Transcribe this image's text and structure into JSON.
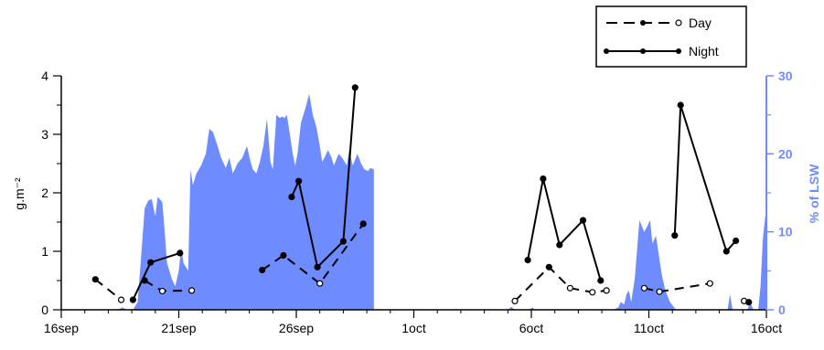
{
  "chart_data": {
    "type": "line",
    "x_tick_labels": [
      "16sep",
      "21sep",
      "26sep",
      "1oct",
      "6oct",
      "11oct",
      "16oct"
    ],
    "x_tick_days": [
      0,
      5,
      10,
      15,
      20,
      25,
      30
    ],
    "y_left": {
      "label": "g.m⁻²",
      "ylim": [
        0,
        4
      ],
      "ticks": [
        "0",
        "1",
        "2",
        "3",
        "4"
      ]
    },
    "y_right": {
      "label": "% of LSW",
      "ylim": [
        0,
        30
      ],
      "ticks": [
        "0",
        "10",
        "20",
        "30"
      ],
      "color": "#6e8cff"
    },
    "legend": {
      "position": "top-right"
    },
    "series": [
      {
        "name": "Day",
        "axis": "left",
        "style": "dashed",
        "segments": [
          [
            [
              1.45,
              0.52
            ],
            [
              2.55,
              0.17
            ]
          ],
          [
            [
              3.55,
              0.5
            ],
            [
              4.3,
              0.32
            ],
            [
              5.55,
              0.33
            ]
          ],
          [
            [
              8.55,
              0.68
            ],
            [
              9.45,
              0.93
            ],
            [
              11.0,
              0.45
            ],
            [
              12.85,
              1.47
            ]
          ],
          [
            [
              19.3,
              0.15
            ],
            [
              20.75,
              0.73
            ],
            [
              21.65,
              0.37
            ],
            [
              22.6,
              0.3
            ],
            [
              23.2,
              0.33
            ]
          ],
          [
            [
              24.8,
              0.37
            ],
            [
              25.45,
              0.31
            ],
            [
              27.6,
              0.45
            ]
          ],
          [
            [
              29.05,
              0.15
            ]
          ]
        ]
      },
      {
        "name": "Night",
        "axis": "left",
        "style": "solid",
        "segments": [
          [
            [
              3.05,
              0.17
            ],
            [
              3.8,
              0.81
            ],
            [
              5.05,
              0.97
            ]
          ],
          [
            [
              9.8,
              1.93
            ],
            [
              10.1,
              2.2
            ],
            [
              10.9,
              0.73
            ],
            [
              12.0,
              1.17
            ],
            [
              12.5,
              3.8
            ]
          ],
          [
            [
              19.85,
              0.85
            ],
            [
              20.5,
              2.24
            ],
            [
              21.2,
              1.11
            ],
            [
              22.2,
              1.53
            ],
            [
              22.95,
              0.5
            ]
          ],
          [
            [
              26.1,
              1.27
            ],
            [
              26.35,
              3.5
            ],
            [
              28.3,
              1.0
            ],
            [
              28.7,
              1.18
            ]
          ],
          [
            [
              29.25,
              0.13
            ]
          ]
        ]
      },
      {
        "name": "% of LSW",
        "axis": "right",
        "type": "area",
        "color": "#6e8cff",
        "points": [
          [
            2.4,
            0
          ],
          [
            2.6,
            0.3
          ],
          [
            2.8,
            0
          ],
          [
            3.05,
            0
          ],
          [
            3.25,
            1
          ],
          [
            3.4,
            7
          ],
          [
            3.55,
            13
          ],
          [
            3.7,
            14
          ],
          [
            3.85,
            14.2
          ],
          [
            4.0,
            12
          ],
          [
            4.1,
            14.5
          ],
          [
            4.3,
            13.8
          ],
          [
            4.4,
            10
          ],
          [
            4.5,
            6
          ],
          [
            4.7,
            4
          ],
          [
            4.85,
            3
          ],
          [
            5.0,
            5
          ],
          [
            5.1,
            8
          ],
          [
            5.2,
            6
          ],
          [
            5.4,
            5
          ],
          [
            5.5,
            18
          ],
          [
            5.6,
            16
          ],
          [
            5.75,
            17.5
          ],
          [
            5.95,
            18.5
          ],
          [
            6.15,
            20
          ],
          [
            6.3,
            23.2
          ],
          [
            6.45,
            22.8
          ],
          [
            6.65,
            21
          ],
          [
            6.8,
            19.5
          ],
          [
            7.0,
            18.2
          ],
          [
            7.15,
            19.5
          ],
          [
            7.3,
            17.5
          ],
          [
            7.5,
            18.8
          ],
          [
            7.7,
            19.5
          ],
          [
            7.9,
            21
          ],
          [
            8.05,
            19
          ],
          [
            8.15,
            18
          ],
          [
            8.3,
            17.5
          ],
          [
            8.45,
            19
          ],
          [
            8.6,
            21
          ],
          [
            8.75,
            24.5
          ],
          [
            8.9,
            19
          ],
          [
            9.0,
            18
          ],
          [
            9.15,
            25
          ],
          [
            9.3,
            24.6
          ],
          [
            9.4,
            24.8
          ],
          [
            9.5,
            24.6
          ],
          [
            9.6,
            25
          ],
          [
            9.7,
            23
          ],
          [
            9.85,
            20
          ],
          [
            9.95,
            18.5
          ],
          [
            10.05,
            20
          ],
          [
            10.2,
            24
          ],
          [
            10.4,
            26
          ],
          [
            10.55,
            27.7
          ],
          [
            10.7,
            25
          ],
          [
            10.85,
            23.5
          ],
          [
            11.0,
            21
          ],
          [
            11.1,
            19
          ],
          [
            11.2,
            19.5
          ],
          [
            11.35,
            20.5
          ],
          [
            11.5,
            19.5
          ],
          [
            11.6,
            18.5
          ],
          [
            11.8,
            20
          ],
          [
            11.95,
            19.5
          ],
          [
            12.15,
            18.5
          ],
          [
            12.25,
            20.5
          ],
          [
            12.4,
            18.5
          ],
          [
            12.6,
            20
          ],
          [
            12.75,
            18.8
          ],
          [
            12.9,
            18
          ],
          [
            13.05,
            17.8
          ],
          [
            13.15,
            18.2
          ],
          [
            13.3,
            18
          ],
          [
            13.3,
            0
          ],
          [
            19.0,
            0
          ],
          [
            19.15,
            0.4
          ],
          [
            19.25,
            0.1
          ],
          [
            19.3,
            0
          ],
          [
            19.9,
            0
          ],
          [
            20.05,
            0.3
          ],
          [
            20.15,
            0
          ],
          [
            23.5,
            0
          ],
          [
            23.7,
            0.3
          ],
          [
            23.8,
            1
          ],
          [
            23.95,
            0.7
          ],
          [
            24.05,
            2
          ],
          [
            24.15,
            2.5
          ],
          [
            24.25,
            1
          ],
          [
            24.4,
            4
          ],
          [
            24.6,
            11.5
          ],
          [
            24.8,
            10
          ],
          [
            24.95,
            10.8
          ],
          [
            25.05,
            11.5
          ],
          [
            25.15,
            8.5
          ],
          [
            25.3,
            9.5
          ],
          [
            25.4,
            7.5
          ],
          [
            25.55,
            4.5
          ],
          [
            25.7,
            2.5
          ],
          [
            25.9,
            1
          ],
          [
            26.15,
            0
          ],
          [
            28.35,
            0
          ],
          [
            28.45,
            2
          ],
          [
            28.55,
            0.2
          ],
          [
            28.6,
            0
          ],
          [
            29.2,
            0
          ],
          [
            29.3,
            1
          ],
          [
            29.45,
            0
          ],
          [
            29.65,
            0
          ],
          [
            29.75,
            3
          ],
          [
            29.85,
            9
          ],
          [
            29.95,
            12
          ],
          [
            30.0,
            12
          ],
          [
            30.0,
            0
          ]
        ]
      }
    ]
  }
}
